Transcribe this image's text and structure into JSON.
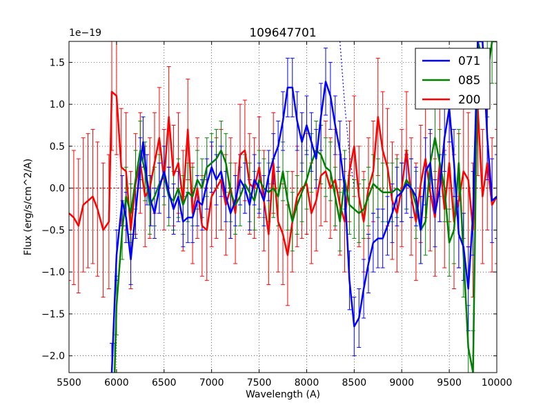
{
  "chart_data": {
    "type": "line",
    "title": "109647701",
    "xlabel": "Wavelength (A)",
    "ylabel": "Flux (erg/s/cm^2/A)",
    "offset_text": "1e−19",
    "xlim": [
      5500,
      10000
    ],
    "ylim": [
      -2.2,
      1.75
    ],
    "x_ticks": [
      5500,
      6000,
      6500,
      7000,
      7500,
      8000,
      8500,
      9000,
      9500,
      10000
    ],
    "x_tick_labels": [
      "5500",
      "6000",
      "6500",
      "7000",
      "7500",
      "8000",
      "8500",
      "9000",
      "9500",
      "10000"
    ],
    "y_ticks": [
      -2.0,
      -1.5,
      -1.0,
      -0.5,
      0.0,
      0.5,
      1.0,
      1.5
    ],
    "y_tick_labels": [
      "−2.0",
      "−1.5",
      "−1.0",
      "−0.5",
      "0.0",
      "0.5",
      "1.0",
      "1.5"
    ],
    "grid": true,
    "legend_position": "top-right",
    "series": [
      {
        "name": "071",
        "color": "#0000ff",
        "x": [
          5950,
          6000,
          6060,
          6100,
          6150,
          6200,
          6250,
          6280,
          6320,
          6360,
          6400,
          6450,
          6500,
          6550,
          6600,
          6650,
          6700,
          6750,
          6800,
          6850,
          6900,
          6950,
          7000,
          7050,
          7100,
          7150,
          7200,
          7250,
          7300,
          7350,
          7400,
          7450,
          7500,
          7550,
          7600,
          7650,
          7700,
          7750,
          7800,
          7850,
          7900,
          7950,
          8000,
          8050,
          8100,
          8150,
          8200,
          8250,
          8300,
          8350,
          8400,
          8450,
          8500,
          8550,
          8600,
          8650,
          8700,
          8750,
          8800,
          8850,
          8900,
          8950,
          9000,
          9050,
          9100,
          9150,
          9200,
          9250,
          9300,
          9350,
          9400,
          9450,
          9500,
          9550,
          9600,
          9650,
          9700,
          9750,
          9800,
          9850,
          9900,
          9950,
          10000
        ],
        "y": [
          -2.2,
          -0.8,
          -0.15,
          -0.35,
          -0.85,
          -0.3,
          0.3,
          0.55,
          0.1,
          -0.15,
          -0.3,
          0.0,
          0.2,
          -0.05,
          -0.25,
          -0.1,
          -0.4,
          -0.35,
          -0.35,
          -0.15,
          -0.2,
          0.05,
          0.25,
          0.1,
          0.2,
          -0.1,
          -0.3,
          -0.15,
          0.1,
          0.0,
          -0.2,
          0.1,
          0.0,
          -0.15,
          0.15,
          0.35,
          0.5,
          0.8,
          1.2,
          1.2,
          0.8,
          0.55,
          0.75,
          0.55,
          0.35,
          0.85,
          1.27,
          1.1,
          0.75,
          0.45,
          0.0,
          -1.1,
          -1.65,
          -1.55,
          -1.2,
          -0.9,
          -0.65,
          -0.6,
          -0.6,
          -0.45,
          -0.3,
          -0.1,
          -0.05,
          0.05,
          0.0,
          -0.1,
          -0.5,
          0.2,
          0.3,
          -0.3,
          0.0,
          0.6,
          0.95,
          0.3,
          -0.55,
          -0.7,
          -1.2,
          -0.3,
          1.75,
          1.75,
          0.6,
          -0.15,
          -0.1
        ],
        "err": [
          0.35,
          0.3,
          0.3,
          0.3,
          0.3,
          0.3,
          0.3,
          0.3,
          0.3,
          0.3,
          0.3,
          0.3,
          0.3,
          0.3,
          0.3,
          0.3,
          0.3,
          0.3,
          0.3,
          0.3,
          0.3,
          0.3,
          0.3,
          0.3,
          0.3,
          0.3,
          0.3,
          0.3,
          0.3,
          0.3,
          0.3,
          0.3,
          0.3,
          0.3,
          0.3,
          0.3,
          0.3,
          0.35,
          0.35,
          0.35,
          0.35,
          0.35,
          0.35,
          0.35,
          0.35,
          0.4,
          0.4,
          0.4,
          0.35,
          0.35,
          0.35,
          0.35,
          0.35,
          0.35,
          0.35,
          0.35,
          0.35,
          0.35,
          0.35,
          0.35,
          0.35,
          0.35,
          0.35,
          0.35,
          0.35,
          0.35,
          0.4,
          0.4,
          0.4,
          0.4,
          0.4,
          0.4,
          0.4,
          0.4,
          0.4,
          0.4,
          0.5,
          0.5,
          0.5,
          0.5,
          0.5,
          0.5,
          0.5
        ]
      },
      {
        "name": "085",
        "color": "#008000",
        "x": [
          5980,
          6000,
          6060,
          6100,
          6150,
          6200,
          6250,
          6300,
          6350,
          6400,
          6450,
          6500,
          6550,
          6600,
          6650,
          6700,
          6750,
          6800,
          6850,
          6900,
          6950,
          7000,
          7050,
          7100,
          7150,
          7200,
          7250,
          7300,
          7350,
          7400,
          7450,
          7500,
          7550,
          7600,
          7650,
          7700,
          7750,
          7800,
          7850,
          7900,
          7950,
          8000,
          8050,
          8100,
          8150,
          8200,
          8250,
          8300,
          8350,
          8400,
          8450,
          8500,
          8550,
          8600,
          8650,
          8700,
          8750,
          8800,
          8850,
          8900,
          8950,
          9000,
          9050,
          9100,
          9150,
          9200,
          9250,
          9300,
          9350,
          9400,
          9450,
          9500,
          9550,
          9600,
          9650,
          9700,
          9750,
          9800,
          9850,
          9900,
          9950,
          10000
        ],
        "y": [
          -2.2,
          -1.4,
          -0.5,
          -0.1,
          -0.3,
          0.1,
          0.45,
          0.2,
          -0.2,
          -0.1,
          0.05,
          0.15,
          -0.1,
          -0.15,
          0.0,
          -0.2,
          -0.05,
          -0.1,
          0.1,
          0.0,
          0.25,
          0.3,
          0.35,
          0.45,
          0.3,
          -0.05,
          -0.2,
          -0.1,
          0.05,
          -0.05,
          -0.15,
          0.1,
          0.0,
          -0.05,
          0.0,
          -0.1,
          0.2,
          -0.15,
          -0.4,
          -0.2,
          -0.05,
          0.1,
          0.3,
          0.45,
          0.4,
          0.25,
          0.2,
          -0.1,
          -0.4,
          0.1,
          -0.2,
          -0.25,
          -0.3,
          -0.25,
          -0.1,
          0.05,
          0.0,
          -0.05,
          -0.05,
          -0.05,
          0.0,
          -0.05,
          0.1,
          0.0,
          -0.2,
          -0.5,
          -0.4,
          0.3,
          0.6,
          0.3,
          0.0,
          -0.65,
          -0.5,
          0.3,
          -0.8,
          -1.9,
          -2.2,
          1.75,
          1.55,
          1.35,
          1.75,
          1.75
        ],
        "err": [
          0.35,
          0.35,
          0.35,
          0.35,
          0.35,
          0.35,
          0.35,
          0.35,
          0.35,
          0.35,
          0.35,
          0.35,
          0.35,
          0.35,
          0.35,
          0.35,
          0.35,
          0.35,
          0.35,
          0.35,
          0.35,
          0.35,
          0.35,
          0.35,
          0.35,
          0.35,
          0.35,
          0.35,
          0.35,
          0.35,
          0.35,
          0.35,
          0.35,
          0.35,
          0.35,
          0.35,
          0.35,
          0.35,
          0.35,
          0.35,
          0.35,
          0.35,
          0.35,
          0.35,
          0.35,
          0.35,
          0.35,
          0.35,
          0.35,
          0.35,
          0.35,
          0.35,
          0.35,
          0.35,
          0.35,
          0.35,
          0.35,
          0.35,
          0.35,
          0.35,
          0.35,
          0.35,
          0.35,
          0.35,
          0.4,
          0.4,
          0.4,
          0.4,
          0.4,
          0.4,
          0.4,
          0.4,
          0.4,
          0.4,
          0.5,
          0.5,
          0.5,
          0.5,
          0.5,
          0.5,
          0.5,
          0.5
        ]
      },
      {
        "name": "200",
        "color": "#ff0000",
        "x": [
          5500,
          5550,
          5600,
          5650,
          5700,
          5750,
          5800,
          5860,
          5920,
          5950,
          6000,
          6050,
          6100,
          6150,
          6200,
          6250,
          6300,
          6350,
          6400,
          6450,
          6500,
          6550,
          6600,
          6650,
          6700,
          6750,
          6800,
          6850,
          6900,
          6950,
          7000,
          7050,
          7100,
          7150,
          7200,
          7250,
          7300,
          7350,
          7400,
          7450,
          7500,
          7550,
          7600,
          7650,
          7700,
          7750,
          7800,
          7850,
          7900,
          7950,
          8000,
          8050,
          8100,
          8150,
          8200,
          8250,
          8300,
          8350,
          8400,
          8450,
          8500,
          8550,
          8600,
          8650,
          8700,
          8750,
          8800,
          8850,
          8900,
          8950,
          9000,
          9050,
          9100,
          9150,
          9200,
          9250,
          9300,
          9350,
          9400,
          9450,
          9500,
          9550,
          9600,
          9650,
          9700,
          9750,
          9800,
          9850,
          9900,
          9950,
          10000
        ],
        "y": [
          -0.3,
          -0.35,
          -0.45,
          -0.2,
          -0.15,
          -0.1,
          -0.25,
          -0.5,
          -0.4,
          1.15,
          1.1,
          0.25,
          0.2,
          -0.5,
          0.05,
          0.3,
          -0.1,
          0.0,
          0.3,
          0.6,
          0.1,
          0.85,
          0.15,
          0.3,
          -0.15,
          0.7,
          -0.3,
          0.0,
          -0.45,
          -0.5,
          -0.1,
          0.0,
          0.1,
          -0.2,
          0.0,
          -0.3,
          0.4,
          0.45,
          0.05,
          0.0,
          0.25,
          -0.15,
          -0.55,
          0.3,
          -0.4,
          -0.55,
          -0.8,
          -0.4,
          -0.1,
          0.0,
          0.05,
          -0.3,
          -0.15,
          0.15,
          0.2,
          0.0,
          0.1,
          -0.2,
          -0.4,
          0.2,
          0.5,
          -0.1,
          -0.4,
          0.0,
          0.2,
          0.85,
          0.45,
          0.25,
          -0.15,
          -0.3,
          0.0,
          0.45,
          -0.1,
          -0.4,
          0.05,
          0.35,
          -0.05,
          -0.35,
          0.3,
          -0.25,
          0.3,
          -0.4,
          -0.15,
          0.2,
          0.1,
          -0.5,
          0.95,
          -0.1,
          0.3,
          -0.2,
          -0.1
        ],
        "err": [
          0.8,
          0.8,
          0.8,
          0.8,
          0.8,
          0.8,
          0.8,
          0.8,
          0.8,
          0.7,
          0.7,
          0.7,
          0.7,
          0.7,
          0.6,
          0.6,
          0.6,
          0.6,
          0.6,
          0.6,
          0.6,
          0.6,
          0.6,
          0.6,
          0.6,
          0.6,
          0.6,
          0.6,
          0.6,
          0.6,
          0.6,
          0.6,
          0.6,
          0.6,
          0.6,
          0.6,
          0.6,
          0.6,
          0.6,
          0.6,
          0.6,
          0.6,
          0.6,
          0.6,
          0.6,
          0.6,
          0.6,
          0.6,
          0.6,
          0.6,
          0.6,
          0.6,
          0.6,
          0.6,
          0.6,
          0.6,
          0.6,
          0.6,
          0.6,
          0.6,
          0.6,
          0.6,
          0.6,
          0.6,
          0.6,
          0.7,
          0.7,
          0.7,
          0.7,
          0.7,
          0.7,
          0.7,
          0.7,
          0.7,
          0.7,
          0.7,
          0.7,
          0.7,
          0.7,
          0.7,
          0.7,
          0.8,
          0.8,
          0.8,
          0.8,
          0.8,
          0.8,
          0.8,
          0.8,
          0.8,
          0.8
        ]
      }
    ],
    "reference_lines": [
      {
        "name": "zero-line",
        "color": "#cc0000",
        "style": "dotted",
        "x": [
          5500,
          10000
        ],
        "y": [
          0,
          0
        ]
      },
      {
        "name": "blue-dotted-curve",
        "color": "#0000ff",
        "style": "dotted",
        "x": [
          8350,
          8400,
          8450,
          8500
        ],
        "y": [
          1.75,
          1.0,
          0.4,
          0.0
        ]
      }
    ]
  }
}
